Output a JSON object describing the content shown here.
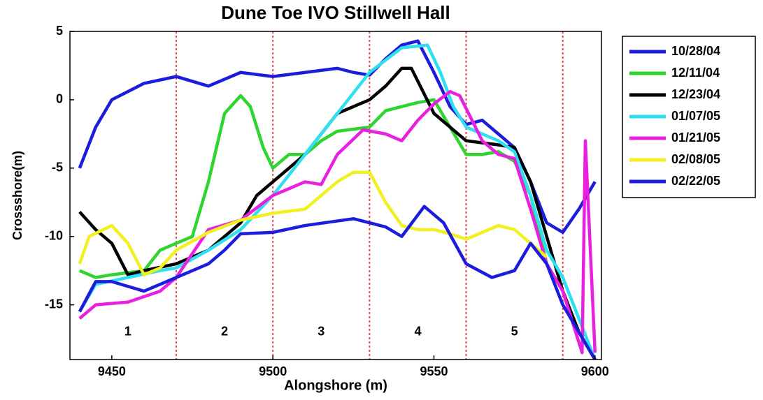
{
  "chart_data": {
    "type": "line",
    "title": "Dune Toe IVO Stillwell Hall",
    "xlabel": "Alongshore (m)",
    "ylabel": "Crossshore(m)",
    "xlim": [
      9437,
      9602
    ],
    "ylim": [
      -19,
      5
    ],
    "xticks": [
      9450,
      9500,
      9550,
      9600
    ],
    "yticks": [
      5,
      0,
      -5,
      -10,
      -15
    ],
    "vlines": [
      9470,
      9500,
      9530,
      9560,
      9590
    ],
    "vline_color": "#e8484e",
    "region_labels": [
      "1",
      "2",
      "3",
      "4",
      "5"
    ],
    "legend": "outside-right",
    "series": [
      {
        "name": "10/28/04",
        "color": "#1c1cdc",
        "x": [
          9440,
          9445,
          9450,
          9460,
          9470,
          9480,
          9490,
          9500,
          9510,
          9520,
          9525,
          9530,
          9535,
          9540,
          9545,
          9550,
          9555,
          9560,
          9565,
          9570,
          9575,
          9580,
          9585,
          9590,
          9595,
          9600
        ],
        "values": [
          -5,
          -2,
          0,
          1.2,
          1.7,
          1,
          2,
          1.7,
          2,
          2.3,
          2,
          1.8,
          3,
          4,
          4.3,
          2,
          -0.5,
          -1.8,
          -1.5,
          -2.5,
          -3.5,
          -6,
          -9,
          -9.7,
          -8,
          -6
        ]
      },
      {
        "name": "12/11/04",
        "color": "#2fd42f",
        "x": [
          9440,
          9445,
          9450,
          9460,
          9465,
          9470,
          9475,
          9480,
          9485,
          9490,
          9493,
          9497,
          9500,
          9505,
          9510,
          9515,
          9520,
          9530,
          9535,
          9545,
          9550,
          9555,
          9560,
          9565,
          9570,
          9575,
          9580,
          9585,
          9590,
          9595,
          9600
        ],
        "values": [
          -12.5,
          -13,
          -12.8,
          -12.5,
          -11,
          -10.5,
          -10,
          -6,
          -1,
          0.3,
          -0.5,
          -3.5,
          -5,
          -4,
          -4,
          -3,
          -2.3,
          -2,
          -0.8,
          -0.2,
          0,
          -2,
          -4,
          -4,
          -3.8,
          -4.5,
          -7,
          -12,
          -14,
          -17,
          -19
        ]
      },
      {
        "name": "12/23/04",
        "color": "#000000",
        "x": [
          9440,
          9445,
          9450,
          9455,
          9460,
          9470,
          9480,
          9490,
          9495,
          9500,
          9510,
          9520,
          9530,
          9535,
          9540,
          9543,
          9550,
          9555,
          9560,
          9570,
          9575,
          9580,
          9585,
          9590,
          9595,
          9600
        ],
        "values": [
          -8.2,
          -9.5,
          -10.5,
          -12.8,
          -12.5,
          -12,
          -11,
          -9,
          -7,
          -6,
          -4,
          -1,
          0,
          1,
          2.3,
          2.3,
          -1,
          -2,
          -3,
          -3.3,
          -3.5,
          -6,
          -10,
          -14,
          -17,
          -19
        ]
      },
      {
        "name": "01/07/05",
        "color": "#2fe0f0",
        "x": [
          9440,
          9445,
          9455,
          9465,
          9470,
          9480,
          9490,
          9500,
          9510,
          9520,
          9530,
          9540,
          9548,
          9552,
          9556,
          9560,
          9570,
          9575,
          9580,
          9585,
          9590,
          9595,
          9600
        ],
        "values": [
          -15.5,
          -13.5,
          -13,
          -12.5,
          -12.3,
          -11,
          -9.5,
          -7,
          -4,
          -1,
          2,
          3.8,
          4,
          2,
          -0.5,
          -2,
          -3,
          -3.8,
          -7,
          -11,
          -13,
          -16,
          -19
        ]
      },
      {
        "name": "01/21/05",
        "color": "#e820e0",
        "x": [
          9440,
          9445,
          9455,
          9465,
          9470,
          9480,
          9490,
          9500,
          9510,
          9515,
          9520,
          9528,
          9535,
          9540,
          9545,
          9550,
          9555,
          9558,
          9565,
          9570,
          9575,
          9580,
          9585,
          9590,
          9596,
          9597,
          9600
        ],
        "values": [
          -16,
          -15,
          -14.8,
          -14,
          -13,
          -9.5,
          -8.8,
          -7,
          -6,
          -6.2,
          -4,
          -2.2,
          -2.5,
          -3,
          -1.5,
          -0.3,
          0.6,
          0.3,
          -3,
          -4,
          -4.3,
          -8,
          -12,
          -14,
          -18.5,
          -3,
          -18.5
        ]
      },
      {
        "name": "02/08/05",
        "color": "#f2f020",
        "x": [
          9440,
          9443,
          9450,
          9455,
          9460,
          9465,
          9470,
          9480,
          9490,
          9500,
          9510,
          9515,
          9520,
          9525,
          9530,
          9535,
          9540,
          9545,
          9550,
          9555,
          9560,
          9570,
          9575,
          9580,
          9585
        ],
        "values": [
          -12,
          -10,
          -9.2,
          -10.5,
          -12.8,
          -12.3,
          -11,
          -9.7,
          -8.8,
          -8.3,
          -8,
          -7,
          -6,
          -5.3,
          -5.3,
          -7.5,
          -9.2,
          -9.5,
          -9.5,
          -9.8,
          -10.2,
          -9.2,
          -9.5,
          -10.5,
          -11.5
        ]
      },
      {
        "name": "02/22/05",
        "color": "#1c1cdc",
        "x": [
          9440,
          9445,
          9450,
          9460,
          9470,
          9480,
          9485,
          9490,
          9500,
          9510,
          9525,
          9535,
          9540,
          9547,
          9553,
          9560,
          9568,
          9575,
          9580,
          9585,
          9590,
          9595,
          9600
        ],
        "values": [
          -15.5,
          -13.3,
          -13.3,
          -14,
          -13,
          -12,
          -11,
          -9.8,
          -9.7,
          -9.2,
          -8.7,
          -9.3,
          -10,
          -7.8,
          -9,
          -12,
          -13,
          -12.5,
          -10.5,
          -12,
          -15,
          -17,
          -19
        ]
      }
    ]
  }
}
